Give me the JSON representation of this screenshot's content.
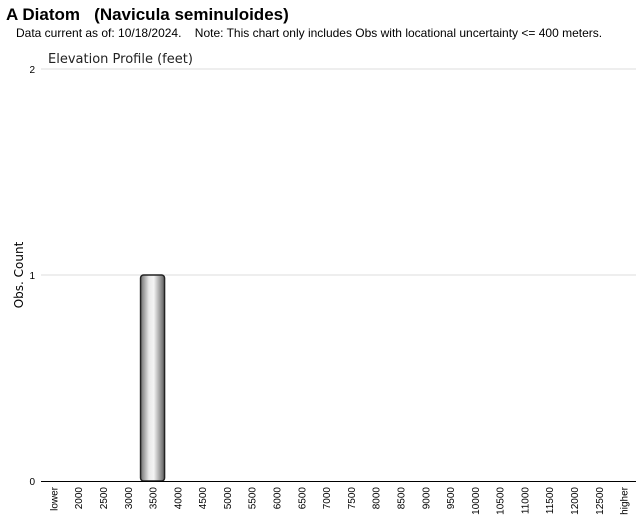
{
  "header": {
    "title": "A Diatom   (Navicula seminuloides)",
    "subtitle": "Data current as of: 10/18/2024.    Note: This chart only includes Obs with locational uncertainty <= 400 meters."
  },
  "chart_data": {
    "type": "bar",
    "title": "Elevation Profile (feet)",
    "xlabel": "",
    "ylabel": "Obs. Count",
    "categories": [
      "lower",
      "2000",
      "2500",
      "3000",
      "3500",
      "4000",
      "4500",
      "5000",
      "5500",
      "6000",
      "6500",
      "7000",
      "7500",
      "8000",
      "8500",
      "9000",
      "9500",
      "10000",
      "10500",
      "11000",
      "11500",
      "12000",
      "12500",
      "higher"
    ],
    "values": [
      0,
      0,
      0,
      0,
      1,
      0,
      0,
      0,
      0,
      0,
      0,
      0,
      0,
      0,
      0,
      0,
      0,
      0,
      0,
      0,
      0,
      0,
      0,
      0
    ],
    "ylim": [
      0,
      2
    ],
    "yticks": [
      0,
      1,
      2
    ],
    "grid": true
  }
}
